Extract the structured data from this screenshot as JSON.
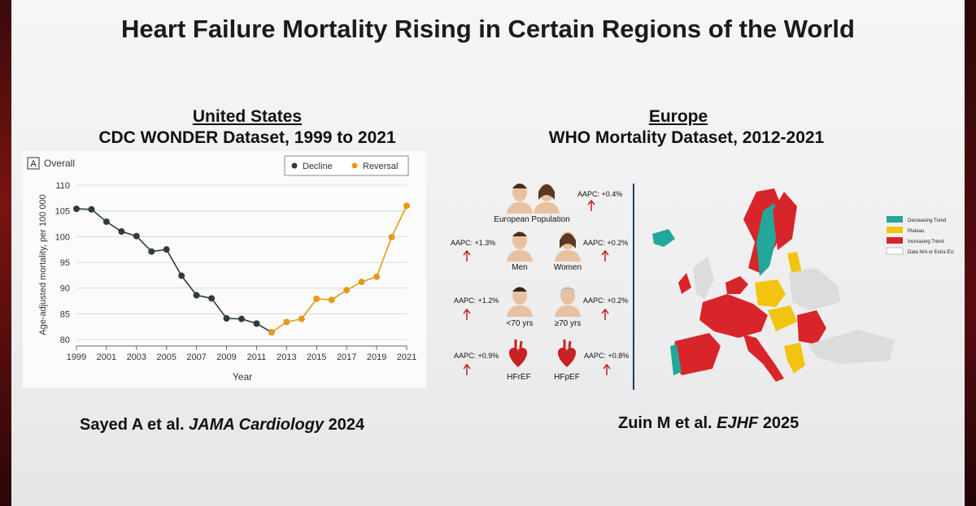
{
  "slide_title": "Heart Failure Mortality Rising in Certain Regions of the World",
  "us": {
    "heading": "United States",
    "subheading": "CDC WONDER Dataset, 1999 to 2021",
    "panel_label": "A",
    "panel_title": "Overall",
    "citation_authors": "Sayed A et al.",
    "citation_journal": "JAMA Cardiology",
    "citation_year": "2024"
  },
  "chart_data": {
    "type": "line",
    "xlabel": "Year",
    "ylabel": "Age-adjusted mortality, per 100 000",
    "xlim": [
      1999,
      2021
    ],
    "ylim": [
      80,
      110
    ],
    "x_ticks": [
      "1999",
      "2001",
      "2003",
      "2005",
      "2007",
      "2009",
      "2011",
      "2013",
      "2015",
      "2017",
      "2019",
      "2021"
    ],
    "y_ticks": [
      "80",
      "85",
      "90",
      "95",
      "100",
      "105",
      "110"
    ],
    "legend": [
      "Decline",
      "Reversal"
    ],
    "series": [
      {
        "name": "Decline",
        "color": "#2e3b40",
        "x": [
          1999,
          2000,
          2001,
          2002,
          2003,
          2004,
          2005,
          2006,
          2007,
          2008,
          2009,
          2010,
          2011,
          2012
        ],
        "values": [
          105.4,
          105.3,
          102.9,
          101.0,
          100.1,
          97.1,
          97.5,
          92.4,
          88.6,
          88.0,
          84.1,
          84.0,
          83.1,
          81.4
        ]
      },
      {
        "name": "Reversal",
        "color": "#e59a1b",
        "x": [
          2012,
          2013,
          2014,
          2015,
          2016,
          2017,
          2018,
          2019,
          2020,
          2021
        ],
        "values": [
          81.4,
          83.4,
          84.0,
          87.9,
          87.7,
          89.6,
          91.2,
          92.2,
          99.9,
          106.0
        ]
      }
    ]
  },
  "europe": {
    "heading": "Europe",
    "subheading": "WHO Mortality Dataset, 2012-2021",
    "groups": [
      {
        "label": "European Population",
        "aapc": "AAPC: +0.4%"
      },
      {
        "label": "Men",
        "aapc": "AAPC: +1.3%"
      },
      {
        "label": "Women",
        "aapc": "AAPC: +0.2%"
      },
      {
        "label": "<70 yrs",
        "aapc": "AAPC: +1.2%"
      },
      {
        "label": "≥70 yrs",
        "aapc": "AAPC: +0.2%"
      },
      {
        "label": "HFrEF",
        "aapc": "AAPC: +0.9%"
      },
      {
        "label": "HFpEF",
        "aapc": "AAPC: +0.8%"
      }
    ],
    "map_legend": [
      {
        "label": "Decreasing Trend",
        "color": "#22a79a"
      },
      {
        "label": "Plateau",
        "color": "#f2c40f"
      },
      {
        "label": "Increasing Trend",
        "color": "#d8252a"
      },
      {
        "label": "Data N/A or Extra EU",
        "color": "#ffffff"
      }
    ],
    "citation_authors": "Zuin M et al.",
    "citation_journal": "EJHF",
    "citation_year": "2025"
  }
}
